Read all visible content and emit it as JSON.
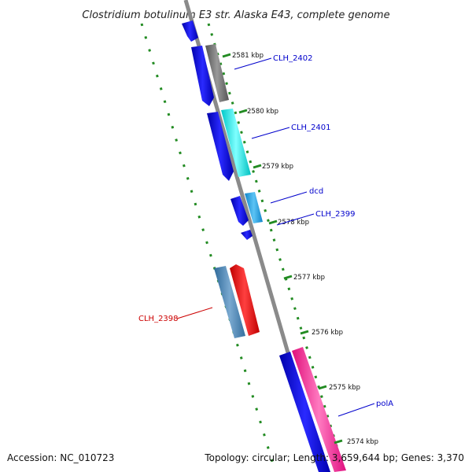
{
  "title": "Clostridium botulinum E3 str. Alaska E43, complete genome",
  "footer": {
    "accession": "Accession: NC_010723",
    "summary": "Topology: circular; Length: 3,659,644 bp; Genes: 3,370"
  },
  "ticks": [
    "2581 kbp",
    "2580 kbp",
    "2579 kbp",
    "2578 kbp",
    "2577 kbp",
    "2576 kbp",
    "2575 kbp",
    "2574 kbp"
  ],
  "gene_labels": [
    {
      "text": "CLH_2402",
      "color": "#0000cc"
    },
    {
      "text": "CLH_2401",
      "color": "#0000cc"
    },
    {
      "text": "dcd",
      "color": "#0000cc"
    },
    {
      "text": "CLH_2399",
      "color": "#0000cc"
    },
    {
      "text": "CLH_2398",
      "color": "#cc0000"
    },
    {
      "text": "polA",
      "color": "#0000cc"
    }
  ],
  "colors": {
    "backbone": "#808080",
    "cds_blue": "#0000ee",
    "gray": "#6e6e6e",
    "cyan": "#00e5e5",
    "sky": "#1e9fe0",
    "steel": "#4682b4",
    "red": "#ee0000",
    "pink": "#ff1493",
    "dots": "#228b22"
  }
}
